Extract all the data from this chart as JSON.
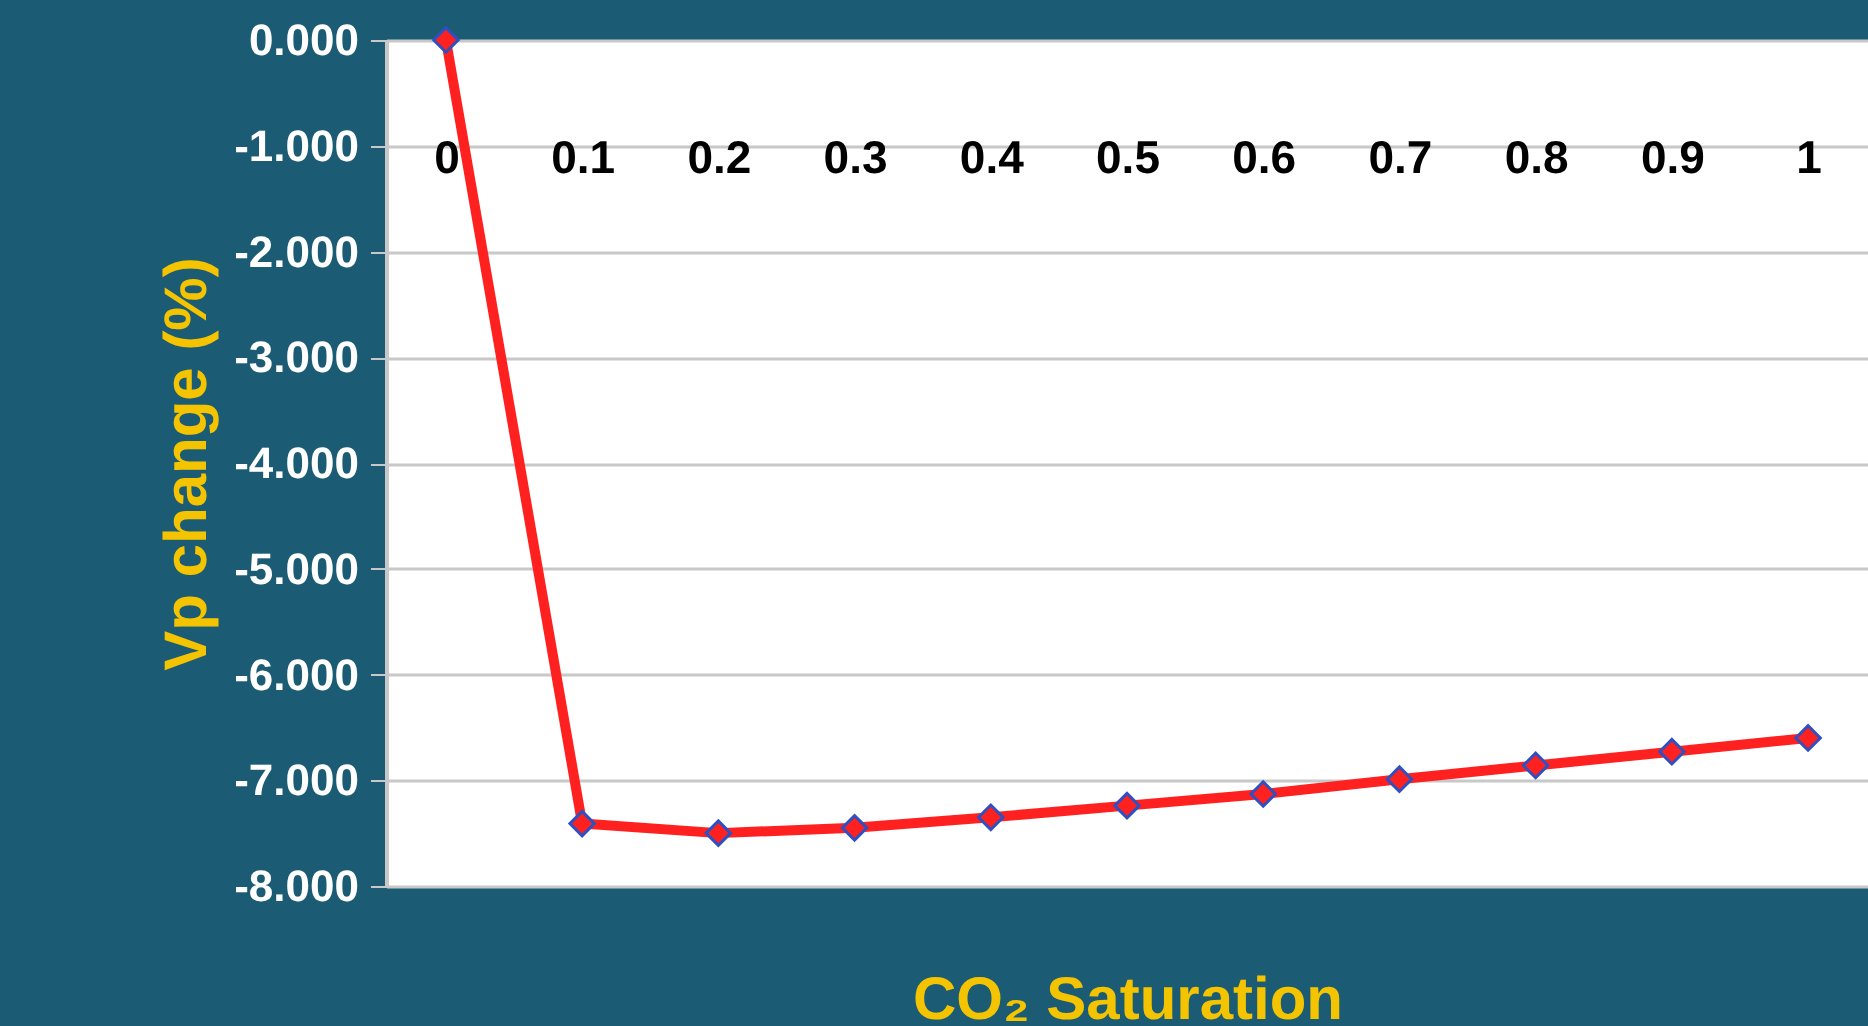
{
  "chart_data": {
    "type": "line",
    "xlabel": "CO₂ Saturation",
    "ylabel": "Vp  change (%)",
    "categories": [
      "0",
      "0.1",
      "0.2",
      "0.3",
      "0.4",
      "0.5",
      "0.6",
      "0.7",
      "0.8",
      "0.9",
      "1"
    ],
    "series": [
      {
        "color": "#ff2020",
        "values": [
          0,
          -7.41,
          -7.5,
          -7.45,
          -7.35,
          -7.24,
          -7.13,
          -6.99,
          -6.86,
          -6.73,
          -6.6
        ]
      }
    ],
    "ylim": [
      -8,
      0
    ],
    "yticks": [
      {
        "value": -8,
        "label": "-8.000"
      },
      {
        "value": -7,
        "label": "-7.000"
      },
      {
        "value": -6,
        "label": "-6.000"
      },
      {
        "value": -5,
        "label": "-5.000"
      },
      {
        "value": -4,
        "label": "-4.000"
      },
      {
        "value": -3,
        "label": "-3.000"
      },
      {
        "value": -2,
        "label": "-2.000"
      },
      {
        "value": -1,
        "label": "-1.000"
      },
      {
        "value": 0,
        "label": "0.000"
      }
    ],
    "grid": "y",
    "marker": "diamond",
    "line_style": "solid"
  }
}
